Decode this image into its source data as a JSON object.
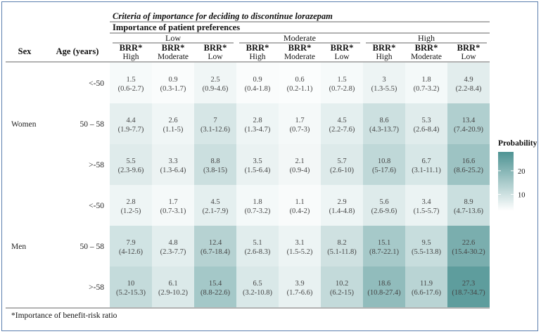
{
  "chart_data": {
    "type": "heatmap",
    "title": "Criteria of importance for deciding to discontinue lorazepam",
    "subtitle": "Importance of patient preferences",
    "column_header_left": {
      "sex": "Sex",
      "age": "Age (years)"
    },
    "preference_groups": [
      "Low",
      "Moderate",
      "High"
    ],
    "brr_labels": [
      {
        "top": "BRR*",
        "bottom": "High"
      },
      {
        "top": "BRR*",
        "bottom": "Moderate"
      },
      {
        "top": "BRR*",
        "bottom": "Low"
      }
    ],
    "sex_groups": [
      "Women",
      "Men"
    ],
    "age_groups": [
      "<-50",
      "50 – 58",
      ">-58"
    ],
    "rows": [
      {
        "sex": "Women",
        "age": "<-50",
        "cells": [
          {
            "value": 1.5,
            "ci": "(0.6-2.7)"
          },
          {
            "value": 0.9,
            "ci": "(0.3-1.7)"
          },
          {
            "value": 2.5,
            "ci": "(0.9-4.6)"
          },
          {
            "value": 0.9,
            "ci": "(0.4-1.8)"
          },
          {
            "value": 0.6,
            "ci": "(0.2-1.1)"
          },
          {
            "value": 1.5,
            "ci": "(0.7-2.8)"
          },
          {
            "value": 3,
            "ci": "(1.3-5.5)"
          },
          {
            "value": 1.8,
            "ci": "(0.7-3.2)"
          },
          {
            "value": 4.9,
            "ci": "(2.2-8.4)"
          }
        ]
      },
      {
        "sex": "Women",
        "age": "50 – 58",
        "cells": [
          {
            "value": 4.4,
            "ci": "(1.9-7.7)"
          },
          {
            "value": 2.6,
            "ci": "(1.1-5)"
          },
          {
            "value": 7,
            "ci": "(3.1-12.6)"
          },
          {
            "value": 2.8,
            "ci": "(1.3-4.7)"
          },
          {
            "value": 1.7,
            "ci": "(0.7-3)"
          },
          {
            "value": 4.5,
            "ci": "(2.2-7.6)"
          },
          {
            "value": 8.6,
            "ci": "(4.3-13.7)"
          },
          {
            "value": 5.3,
            "ci": "(2.6-8.4)"
          },
          {
            "value": 13.4,
            "ci": "(7.4-20.9)"
          }
        ]
      },
      {
        "sex": "Women",
        "age": ">-58",
        "cells": [
          {
            "value": 5.5,
            "ci": "(2.3-9.6)"
          },
          {
            "value": 3.3,
            "ci": "(1.3-6.4)"
          },
          {
            "value": 8.8,
            "ci": "(3.8-15)"
          },
          {
            "value": 3.5,
            "ci": "(1.5-6.4)"
          },
          {
            "value": 2.1,
            "ci": "(0.9-4)"
          },
          {
            "value": 5.7,
            "ci": "(2.6-10)"
          },
          {
            "value": 10.8,
            "ci": "(5-17.6)"
          },
          {
            "value": 6.7,
            "ci": "(3.1-11.1)"
          },
          {
            "value": 16.6,
            "ci": "(8.6-25.2)"
          }
        ]
      },
      {
        "sex": "Men",
        "age": "<-50",
        "cells": [
          {
            "value": 2.8,
            "ci": "(1.2-5)"
          },
          {
            "value": 1.7,
            "ci": "(0.7-3.1)"
          },
          {
            "value": 4.5,
            "ci": "(2.1-7.9)"
          },
          {
            "value": 1.8,
            "ci": "(0.7-3.2)"
          },
          {
            "value": 1.1,
            "ci": "(0.4-2)"
          },
          {
            "value": 2.9,
            "ci": "(1.4-4.8)"
          },
          {
            "value": 5.6,
            "ci": "(2.6-9.6)"
          },
          {
            "value": 3.4,
            "ci": "(1.5-5.7)"
          },
          {
            "value": 8.9,
            "ci": "(4.7-13.6)"
          }
        ]
      },
      {
        "sex": "Men",
        "age": "50 – 58",
        "cells": [
          {
            "value": 7.9,
            "ci": "(4-12.6)"
          },
          {
            "value": 4.8,
            "ci": "(2.3-7.7)"
          },
          {
            "value": 12.4,
            "ci": "(6.7-18.4)"
          },
          {
            "value": 5.1,
            "ci": "(2.6-8.3)"
          },
          {
            "value": 3.1,
            "ci": "(1.5-5.2)"
          },
          {
            "value": 8.2,
            "ci": "(5.1-11.8)"
          },
          {
            "value": 15.1,
            "ci": "(8.7-22.1)"
          },
          {
            "value": 9.5,
            "ci": "(5.5-13.8)"
          },
          {
            "value": 22.6,
            "ci": "(15.4-30.2)"
          }
        ]
      },
      {
        "sex": "Men",
        "age": ">-58",
        "cells": [
          {
            "value": 10,
            "ci": "(5.2-15.3)"
          },
          {
            "value": 6.1,
            "ci": "(2.9-10.2)"
          },
          {
            "value": 15.4,
            "ci": "(8.8-22.6)"
          },
          {
            "value": 6.5,
            "ci": "(3.2-10.8)"
          },
          {
            "value": 3.9,
            "ci": "(1.7-6.6)"
          },
          {
            "value": 10.2,
            "ci": "(6.2-15)"
          },
          {
            "value": 18.6,
            "ci": "(10.8-27.4)"
          },
          {
            "value": 11.9,
            "ci": "(6.6-17.6)"
          },
          {
            "value": 27.3,
            "ci": "(18.7-34.7)"
          }
        ]
      }
    ],
    "legend": {
      "title": "Probability",
      "ticks": [
        10,
        20
      ],
      "range": [
        0,
        30
      ],
      "placement": "right"
    },
    "color_scale": {
      "low": "#ffffff",
      "high": "#4e9393"
    },
    "footnote": "*Importance of benefit-risk ratio"
  }
}
